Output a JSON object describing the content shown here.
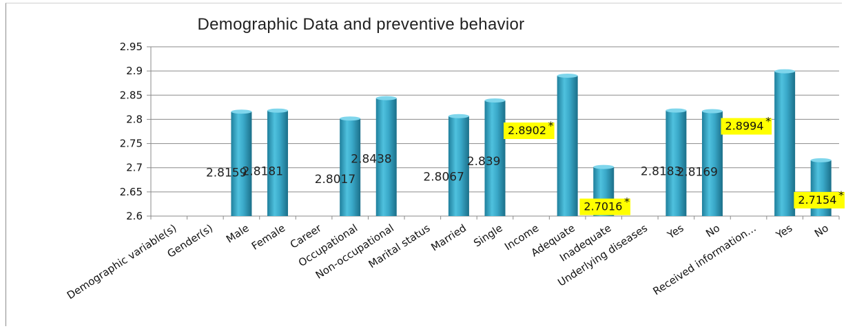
{
  "chart_data": {
    "type": "bar",
    "title": "Demographic Data and preventive behavior",
    "xlabel": "",
    "ylabel": "",
    "ylim": [
      2.6,
      2.95
    ],
    "yticks": [
      "2.6",
      "2.65",
      "2.7",
      "2.75",
      "2.8",
      "2.85",
      "2.9",
      "2.95"
    ],
    "grid": true,
    "legend": "none",
    "bar_color": "#3aa9c9",
    "highlight_color": "#ffff00",
    "categories": [
      "Demographic variable(s)",
      "Gender(s)",
      "Male",
      "Female",
      "Career",
      "Occupational",
      "Non-occupational",
      "Marital status",
      "Married",
      "Single",
      "Income",
      "Adequate",
      "Inadequate",
      "Underlying diseases",
      "Yes",
      "No",
      "Received information…",
      "Yes",
      "No"
    ],
    "values": [
      null,
      null,
      2.8159,
      2.8181,
      null,
      2.8017,
      2.8438,
      null,
      2.8067,
      2.839,
      null,
      2.8902,
      2.7016,
      null,
      2.8183,
      2.8169,
      null,
      2.8994,
      2.7154
    ],
    "data_labels": [
      null,
      null,
      "2.8159",
      "2.8181",
      null,
      "2.8017",
      "2.8438",
      null,
      "2.8067",
      "2.839",
      null,
      "2.8902",
      "2.7016",
      null,
      "2.8183",
      "2.8169",
      null,
      "2.8994",
      "2.7154"
    ],
    "highlighted": [
      false,
      false,
      false,
      false,
      false,
      false,
      false,
      false,
      false,
      false,
      false,
      true,
      true,
      false,
      false,
      false,
      false,
      true,
      true
    ],
    "significance_mark": "*"
  }
}
